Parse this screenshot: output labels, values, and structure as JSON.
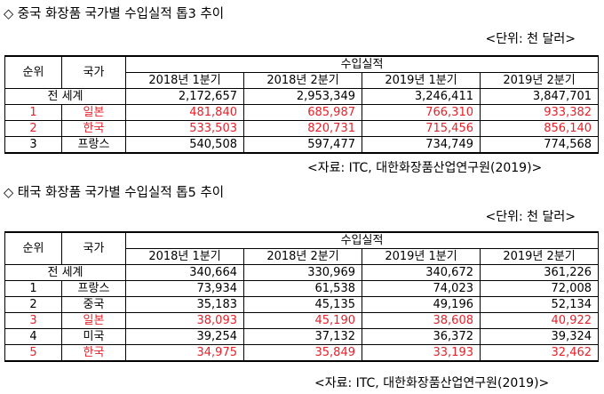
{
  "section1": {
    "title": "◇ 중국 화장품 국가별 수입실적 톱3 추이",
    "unit": "<단위: 천 달러>",
    "header": {
      "rank": "순위",
      "country": "국가",
      "group": "수입실적",
      "periods": [
        "2018년 1분기",
        "2018년 2분기",
        "2019년 1분기",
        "2019년 2분기"
      ]
    },
    "world": {
      "label": "전 세계",
      "values": [
        "2,172,657",
        "2,953,349",
        "3,246,411",
        "3,847,701"
      ]
    },
    "rows": [
      {
        "rank": "1",
        "country": "일본",
        "values": [
          "481,840",
          "685,987",
          "766,310",
          "933,382"
        ],
        "highlight": true
      },
      {
        "rank": "2",
        "country": "한국",
        "values": [
          "533,503",
          "820,731",
          "715,456",
          "856,140"
        ],
        "highlight": true
      },
      {
        "rank": "3",
        "country": "프랑스",
        "values": [
          "540,508",
          "597,477",
          "734,749",
          "774,568"
        ],
        "highlight": false
      }
    ],
    "source": "<자료: ITC, 대한화장품산업연구원(2019)>"
  },
  "section2": {
    "title": "◇ 태국 화장품 국가별 수입실적 톱5 추이",
    "unit": "<단위: 천 달러>",
    "header": {
      "rank": "순위",
      "country": "국가",
      "group": "수입실적",
      "periods": [
        "2018년 1분기",
        "2018년 2분기",
        "2019년 1분기",
        "2019년 2분기"
      ]
    },
    "world": {
      "label": "전 세계",
      "values": [
        "340,664",
        "330,969",
        "340,672",
        "361,226"
      ]
    },
    "rows": [
      {
        "rank": "1",
        "country": "프랑스",
        "values": [
          "73,934",
          "61,538",
          "74,023",
          "72,008"
        ],
        "highlight": false
      },
      {
        "rank": "2",
        "country": "중국",
        "values": [
          "35,183",
          "45,135",
          "49,196",
          "52,134"
        ],
        "highlight": false
      },
      {
        "rank": "3",
        "country": "일본",
        "values": [
          "38,093",
          "45,190",
          "38,608",
          "40,922"
        ],
        "highlight": true
      },
      {
        "rank": "4",
        "country": "미국",
        "values": [
          "39,254",
          "37,132",
          "36,372",
          "39,324"
        ],
        "highlight": false
      },
      {
        "rank": "5",
        "country": "한국",
        "values": [
          "34,975",
          "35,849",
          "33,193",
          "32,462"
        ],
        "highlight": true
      }
    ],
    "source": "<자료: ITC, 대한화장품산업연구원(2019)>"
  },
  "colors": {
    "highlight": "#e8212a",
    "text": "#000000"
  }
}
